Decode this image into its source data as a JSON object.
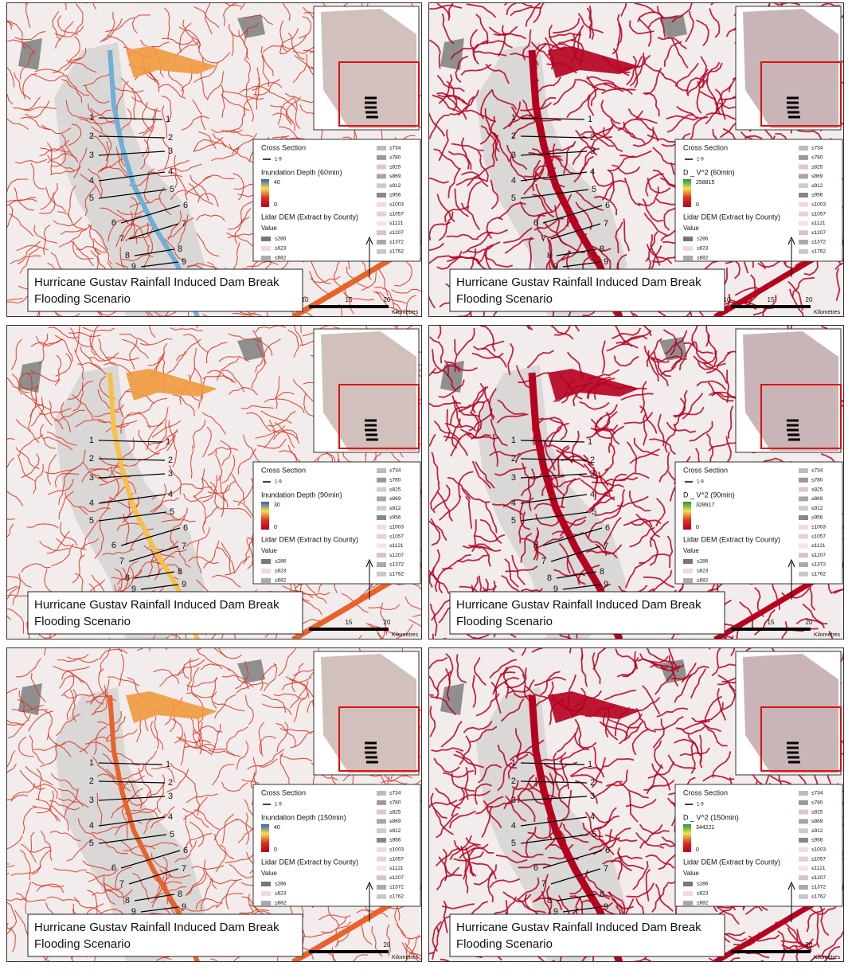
{
  "panels": [
    {
      "title": [
        "Hurricane Gustav Rainfall Induced Dam Break",
        "Flooding Scenario"
      ],
      "legend": {
        "cross_section": "Cross Section",
        "cross_range": "1-9",
        "variable": "Inundation Depth (60min)",
        "ramp_max": 40,
        "ramp_min": 0,
        "dem_title": "Lidar DEM (Extract by County)",
        "value": "Value",
        "dem_low": [
          "≤286",
          "≤623",
          "≤682"
        ],
        "dem_high": [
          "≤734",
          "≤780",
          "≤825",
          "≤869",
          "≤912",
          "≤956",
          "≤1003",
          "≤1057",
          "≤1121",
          "≤1207",
          "≤1372",
          "≤1762"
        ]
      },
      "sections": [
        "1",
        "2",
        "3",
        "4",
        "5",
        "6",
        "7",
        "8",
        "9"
      ],
      "scale": [
        "10",
        "15",
        "20",
        "Kilometres"
      ]
    },
    {
      "title": [
        "Hurricane Gustav Rainfall Induced Dam Break",
        "Flooding Scenario"
      ],
      "legend": {
        "cross_section": "Cross Section",
        "cross_range": "1-9",
        "variable": "D _ V^2 (60min)",
        "ramp_max": 258815,
        "ramp_min": 0,
        "dem_title": "Lidar DEM (Extract by County)",
        "value": "Value",
        "dem_low": [
          "≤286",
          "≤623",
          "≤682"
        ],
        "dem_high": [
          "≤734",
          "≤780",
          "≤825",
          "≤869",
          "≤912",
          "≤956",
          "≤1003",
          "≤1057",
          "≤1121",
          "≤1207",
          "≤1372",
          "≤1762"
        ]
      },
      "sections": [
        "1",
        "2",
        "3",
        "4",
        "5",
        "6",
        "7",
        "8",
        "9"
      ],
      "scale": [
        "10",
        "15",
        "20",
        "Kilometres"
      ]
    },
    {
      "title": [
        "Hurricane Gustav Rainfall Induced Dam Break",
        "Flooding Scenario"
      ],
      "legend": {
        "cross_section": "Cross Section",
        "cross_range": "1-9",
        "variable": "Inundation Depth (90min)",
        "ramp_max": 30,
        "ramp_min": 0,
        "dem_title": "Lidar DEM (Extract by County)",
        "value": "Value",
        "dem_low": [
          "≤286",
          "≤623",
          "≤682"
        ],
        "dem_high": [
          "≤734",
          "≤780",
          "≤825",
          "≤869",
          "≤912",
          "≤956",
          "≤1003",
          "≤1057",
          "≤1121",
          "≤1207",
          "≤1372",
          "≤1762"
        ]
      },
      "sections": [
        "1",
        "2",
        "3",
        "4",
        "5",
        "6",
        "7",
        "8",
        "9"
      ],
      "scale": [
        "15",
        "20",
        "Kilometres"
      ]
    },
    {
      "title": [
        "Hurricane Gustav Rainfall Induced Dam Break",
        "Flooding Scenario"
      ],
      "legend": {
        "cross_section": "Cross Section",
        "cross_range": "1-9",
        "variable": "D _ V^2 (90min)",
        "ramp_max": 328917,
        "ramp_min": 0,
        "dem_title": "Lidar DEM (Extract by County)",
        "value": "Value",
        "dem_low": [
          "≤286",
          "≤623",
          "≤682"
        ],
        "dem_high": [
          "≤734",
          "≤780",
          "≤825",
          "≤869",
          "≤912",
          "≤956",
          "≤1003",
          "≤1057",
          "≤1121",
          "≤1207",
          "≤1372",
          "≤1762"
        ]
      },
      "sections": [
        "1",
        "2",
        "3",
        "4",
        "5",
        "6",
        "7",
        "8",
        "9"
      ],
      "scale": [
        "15",
        "20",
        "Kilometres"
      ]
    },
    {
      "title": [
        "Hurricane Gustav Rainfall Induced Dam Break",
        "Flooding Scenario"
      ],
      "legend": {
        "cross_section": "Cross Section",
        "cross_range": "1-9",
        "variable": "Inundation Depth (150min)",
        "ramp_max": 40,
        "ramp_min": 0,
        "dem_title": "Lidar DEM (Extract by County)",
        "value": "Value",
        "dem_low": [
          "≤286",
          "≤623",
          "≤682"
        ],
        "dem_high": [
          "≤734",
          "≤780",
          "≤825",
          "≤869",
          "≤912",
          "≤956",
          "≤1003",
          "≤1057",
          "≤1121",
          "≤1207",
          "≤1372",
          "≤1762"
        ]
      },
      "sections": [
        "1",
        "2",
        "3",
        "4",
        "5",
        "6",
        "7",
        "8",
        "9"
      ],
      "scale": [
        "20",
        "Kilometres"
      ]
    },
    {
      "title": [
        "Hurricane Gustav Rainfall Induced Dam Break",
        "Flooding Scenario"
      ],
      "legend": {
        "cross_section": "Cross Section",
        "cross_range": "1-9",
        "variable": "D _ V^2 (150min)",
        "ramp_max": 344221,
        "ramp_min": 0,
        "dem_title": "Lidar DEM (Extract by County)",
        "value": "Value",
        "dem_low": [
          "≤286",
          "≤623",
          "≤682"
        ],
        "dem_high": [
          "≤734",
          "≤780",
          "≤825",
          "≤869",
          "≤912",
          "≤956",
          "≤1003",
          "≤1057",
          "≤1121",
          "≤1207",
          "≤1372",
          "≤1762"
        ]
      },
      "sections": [
        "1",
        "2",
        "3",
        "4",
        "5",
        "6",
        "7",
        "8",
        "9"
      ],
      "scale": [
        "20",
        "Kilometres"
      ]
    }
  ]
}
